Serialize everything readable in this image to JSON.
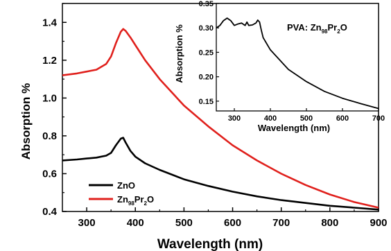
{
  "chart_data": [
    {
      "type": "line",
      "title": "",
      "xlabel": "Wavelength (nm)",
      "ylabel": "Absorption %",
      "xlim": [
        250,
        900
      ],
      "ylim": [
        0.4,
        1.5
      ],
      "x_ticks": [
        "300",
        "400",
        "500",
        "600",
        "700",
        "800",
        "900"
      ],
      "y_ticks": [
        "0.4",
        "0.6",
        "0.8",
        "1.0",
        "1.2",
        "1.4"
      ],
      "legend_position": "bottom-left",
      "series": [
        {
          "name": "ZnO",
          "color": "#000000",
          "x": [
            250,
            280,
            300,
            320,
            340,
            350,
            360,
            370,
            375,
            380,
            390,
            400,
            420,
            450,
            500,
            550,
            600,
            650,
            700,
            750,
            800,
            850,
            900
          ],
          "y": [
            0.67,
            0.675,
            0.68,
            0.685,
            0.695,
            0.71,
            0.75,
            0.785,
            0.79,
            0.765,
            0.72,
            0.69,
            0.655,
            0.62,
            0.57,
            0.535,
            0.505,
            0.48,
            0.46,
            0.445,
            0.43,
            0.42,
            0.41
          ]
        },
        {
          "name": "Zn98Pr2O",
          "label_parts": [
            "Zn",
            "98",
            "Pr",
            "2",
            "O"
          ],
          "color": "#e0201c",
          "x": [
            250,
            280,
            300,
            320,
            340,
            350,
            360,
            370,
            375,
            380,
            390,
            400,
            420,
            450,
            500,
            550,
            600,
            650,
            700,
            750,
            800,
            850,
            900
          ],
          "y": [
            1.12,
            1.13,
            1.14,
            1.15,
            1.18,
            1.22,
            1.29,
            1.35,
            1.365,
            1.355,
            1.32,
            1.28,
            1.2,
            1.1,
            0.96,
            0.85,
            0.75,
            0.67,
            0.6,
            0.54,
            0.49,
            0.45,
            0.42
          ]
        }
      ]
    },
    {
      "type": "line",
      "title": "PVA: Zn98Pr2O",
      "title_parts": [
        "PVA: Zn",
        "98",
        "Pr",
        "2",
        "O"
      ],
      "xlabel": "Wavelength (nm)",
      "ylabel": "Absorption %",
      "xlim": [
        250,
        700
      ],
      "ylim": [
        0.13,
        0.35
      ],
      "x_ticks": [
        "300",
        "400",
        "500",
        "600",
        "700"
      ],
      "y_ticks": [
        "0.15",
        "0.20",
        "0.25",
        "0.30",
        "0.35"
      ],
      "series": [
        {
          "name": "",
          "color": "#000000",
          "x": [
            250,
            260,
            270,
            280,
            290,
            300,
            310,
            320,
            330,
            335,
            340,
            350,
            360,
            365,
            370,
            375,
            380,
            400,
            450,
            500,
            550,
            600,
            650,
            700
          ],
          "y": [
            0.3,
            0.305,
            0.315,
            0.32,
            0.315,
            0.305,
            0.308,
            0.31,
            0.305,
            0.312,
            0.305,
            0.306,
            0.31,
            0.316,
            0.312,
            0.295,
            0.28,
            0.255,
            0.215,
            0.19,
            0.17,
            0.156,
            0.145,
            0.135
          ]
        }
      ]
    }
  ]
}
